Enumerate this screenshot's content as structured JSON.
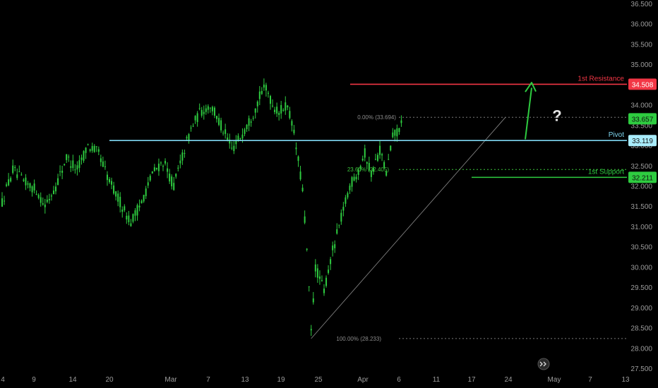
{
  "chart_data": {
    "type": "candlestick",
    "y_axis": {
      "ylim": [
        27.5,
        36.5
      ],
      "tick_labels": [
        "36.500",
        "36.000",
        "35.500",
        "35.000",
        "34.500",
        "34.000",
        "33.500",
        "33.000",
        "32.500",
        "32.000",
        "31.500",
        "31.000",
        "30.500",
        "30.000",
        "29.500",
        "29.000",
        "28.500",
        "28.000",
        "27.500"
      ]
    },
    "x_axis": {
      "tick_labels": [
        "4",
        "9",
        "14",
        "20",
        "Mar",
        "7",
        "13",
        "19",
        "25",
        "Apr",
        "6",
        "11",
        "17",
        "24",
        "May",
        "7",
        "13"
      ]
    },
    "levels": [
      {
        "name": "1st Resistance",
        "value": 34.508,
        "label": "34.508",
        "color": "#f23645"
      },
      {
        "name": "Pivot",
        "value": 33.119,
        "label": "33.119",
        "color": "#7fd8f2"
      },
      {
        "name": "1st Support",
        "value": 32.211,
        "label": "32.211",
        "color": "#2ecc40"
      }
    ],
    "fibonacci": [
      {
        "label": "0.00% (33.694)",
        "value": 33.694
      },
      {
        "label": "23.60% (32.405)",
        "value": 32.405
      },
      {
        "label": "100.00% (28.233)",
        "value": 28.233
      }
    ],
    "current_price": {
      "label": "33.657",
      "value": 33.657
    },
    "annotation": "?",
    "candle_color": "#2ecc40",
    "arrow_color": "#2ecc40",
    "path": [
      {
        "i": 0,
        "v": 31.6
      },
      {
        "i": 5,
        "v": 32.4
      },
      {
        "i": 10,
        "v": 32.1
      },
      {
        "i": 16,
        "v": 31.9
      },
      {
        "i": 20,
        "v": 31.5
      },
      {
        "i": 25,
        "v": 32.0
      },
      {
        "i": 30,
        "v": 32.7
      },
      {
        "i": 35,
        "v": 32.4
      },
      {
        "i": 40,
        "v": 33.0
      },
      {
        "i": 45,
        "v": 32.8
      },
      {
        "i": 50,
        "v": 32.1
      },
      {
        "i": 55,
        "v": 31.6
      },
      {
        "i": 60,
        "v": 31.1
      },
      {
        "i": 65,
        "v": 31.6
      },
      {
        "i": 70,
        "v": 32.3
      },
      {
        "i": 75,
        "v": 32.6
      },
      {
        "i": 80,
        "v": 32.0
      },
      {
        "i": 85,
        "v": 32.9
      },
      {
        "i": 88,
        "v": 33.4
      },
      {
        "i": 92,
        "v": 33.8
      },
      {
        "i": 97,
        "v": 34.0
      },
      {
        "i": 102,
        "v": 33.5
      },
      {
        "i": 107,
        "v": 32.9
      },
      {
        "i": 112,
        "v": 33.3
      },
      {
        "i": 117,
        "v": 33.8
      },
      {
        "i": 120,
        "v": 34.2
      },
      {
        "i": 123,
        "v": 34.45
      },
      {
        "i": 126,
        "v": 34.0
      },
      {
        "i": 129,
        "v": 33.8
      },
      {
        "i": 132,
        "v": 34.0
      },
      {
        "i": 135,
        "v": 33.6
      },
      {
        "i": 138,
        "v": 32.6
      },
      {
        "i": 140,
        "v": 31.9
      },
      {
        "i": 142,
        "v": 30.4
      },
      {
        "i": 144,
        "v": 28.4
      },
      {
        "i": 146,
        "v": 30.0
      },
      {
        "i": 150,
        "v": 29.4
      },
      {
        "i": 154,
        "v": 30.4
      },
      {
        "i": 158,
        "v": 31.2
      },
      {
        "i": 162,
        "v": 32.0
      },
      {
        "i": 166,
        "v": 32.4
      },
      {
        "i": 169,
        "v": 32.8
      },
      {
        "i": 172,
        "v": 32.3
      },
      {
        "i": 176,
        "v": 32.9
      },
      {
        "i": 179,
        "v": 32.3
      },
      {
        "i": 182,
        "v": 33.2
      },
      {
        "i": 186,
        "v": 33.5
      }
    ]
  }
}
